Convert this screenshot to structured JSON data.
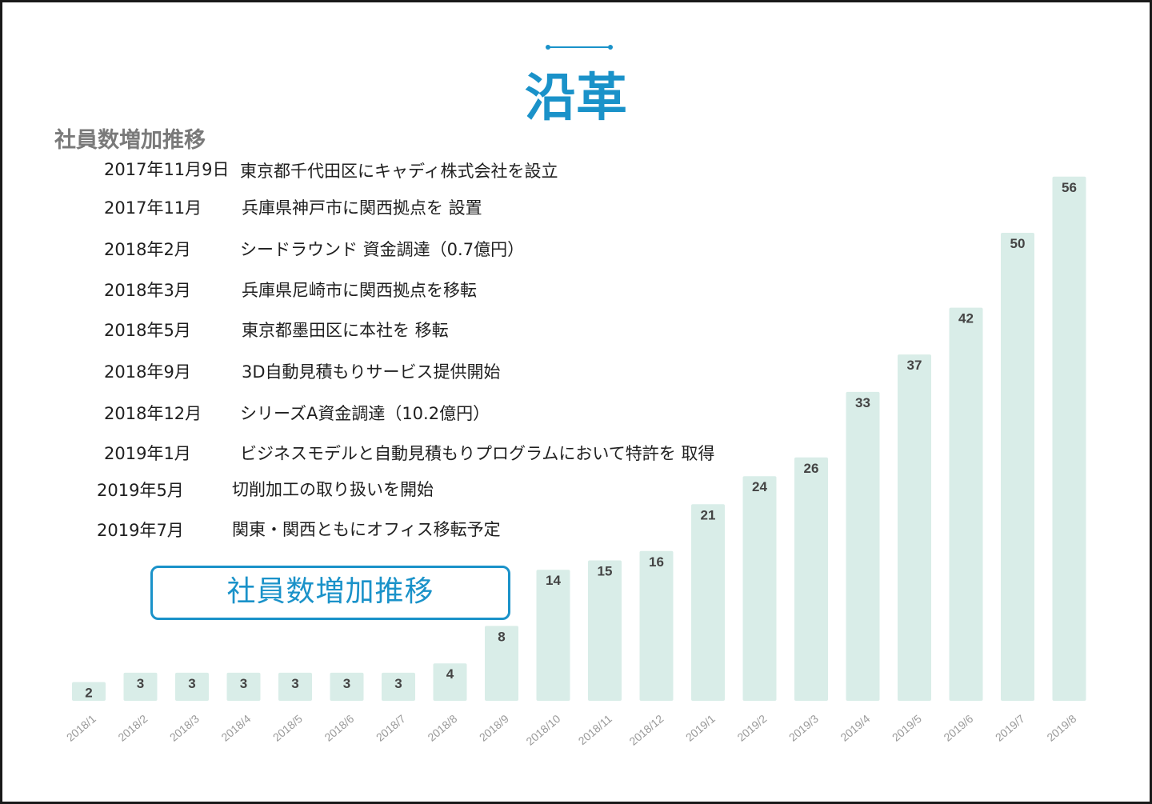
{
  "page": {
    "title": "沿革",
    "subtitle": "社員数増加推移",
    "callout": "社員数増加推移"
  },
  "colors": {
    "accent": "#1a92c9",
    "bar_fill": "#d9ede8"
  },
  "timeline": [
    {
      "date": "2017年11月9日",
      "event": "東京都千代田区にキャディ株式会社を設立"
    },
    {
      "date": "2017年11月",
      "event": "兵庫県神戸市に関西拠点を 設置"
    },
    {
      "date": "2018年2月",
      "event": "シードラウンド 資金調達（0.7億円）"
    },
    {
      "date": "2018年3月",
      "event": "兵庫県尼崎市に関西拠点を移転"
    },
    {
      "date": "2018年5月",
      "event": "東京都墨田区に本社を 移転"
    },
    {
      "date": "2018年9月",
      "event": "3D自動見積もりサービス提供開始"
    },
    {
      "date": "2018年12月",
      "event": "シリーズA資金調達（10.2億円）"
    },
    {
      "date": "2019年1月",
      "event": "ビジネスモデルと自動見積もりプログラムにおいて特許を 取得"
    },
    {
      "date": "2019年5月",
      "event": "切削加工の取り扱いを開始"
    },
    {
      "date": "2019年7月",
      "event": "関東・関西ともにオフィス移転予定"
    }
  ],
  "chart_data": {
    "type": "bar",
    "categories": [
      "2018/1",
      "2018/2",
      "2018/3",
      "2018/4",
      "2018/5",
      "2018/6",
      "2018/7",
      "2018/8",
      "2018/9",
      "2018/10",
      "2018/11",
      "2018/12",
      "2019/1",
      "2019/2",
      "2019/3",
      "2019/4",
      "2019/5",
      "2019/6",
      "2019/7",
      "2019/8"
    ],
    "values": [
      2,
      3,
      3,
      3,
      3,
      3,
      3,
      4,
      8,
      14,
      15,
      16,
      21,
      24,
      26,
      33,
      37,
      42,
      50,
      56
    ],
    "title": "社員数増加推移",
    "data_labels": true,
    "grid": false,
    "legend": "none"
  }
}
